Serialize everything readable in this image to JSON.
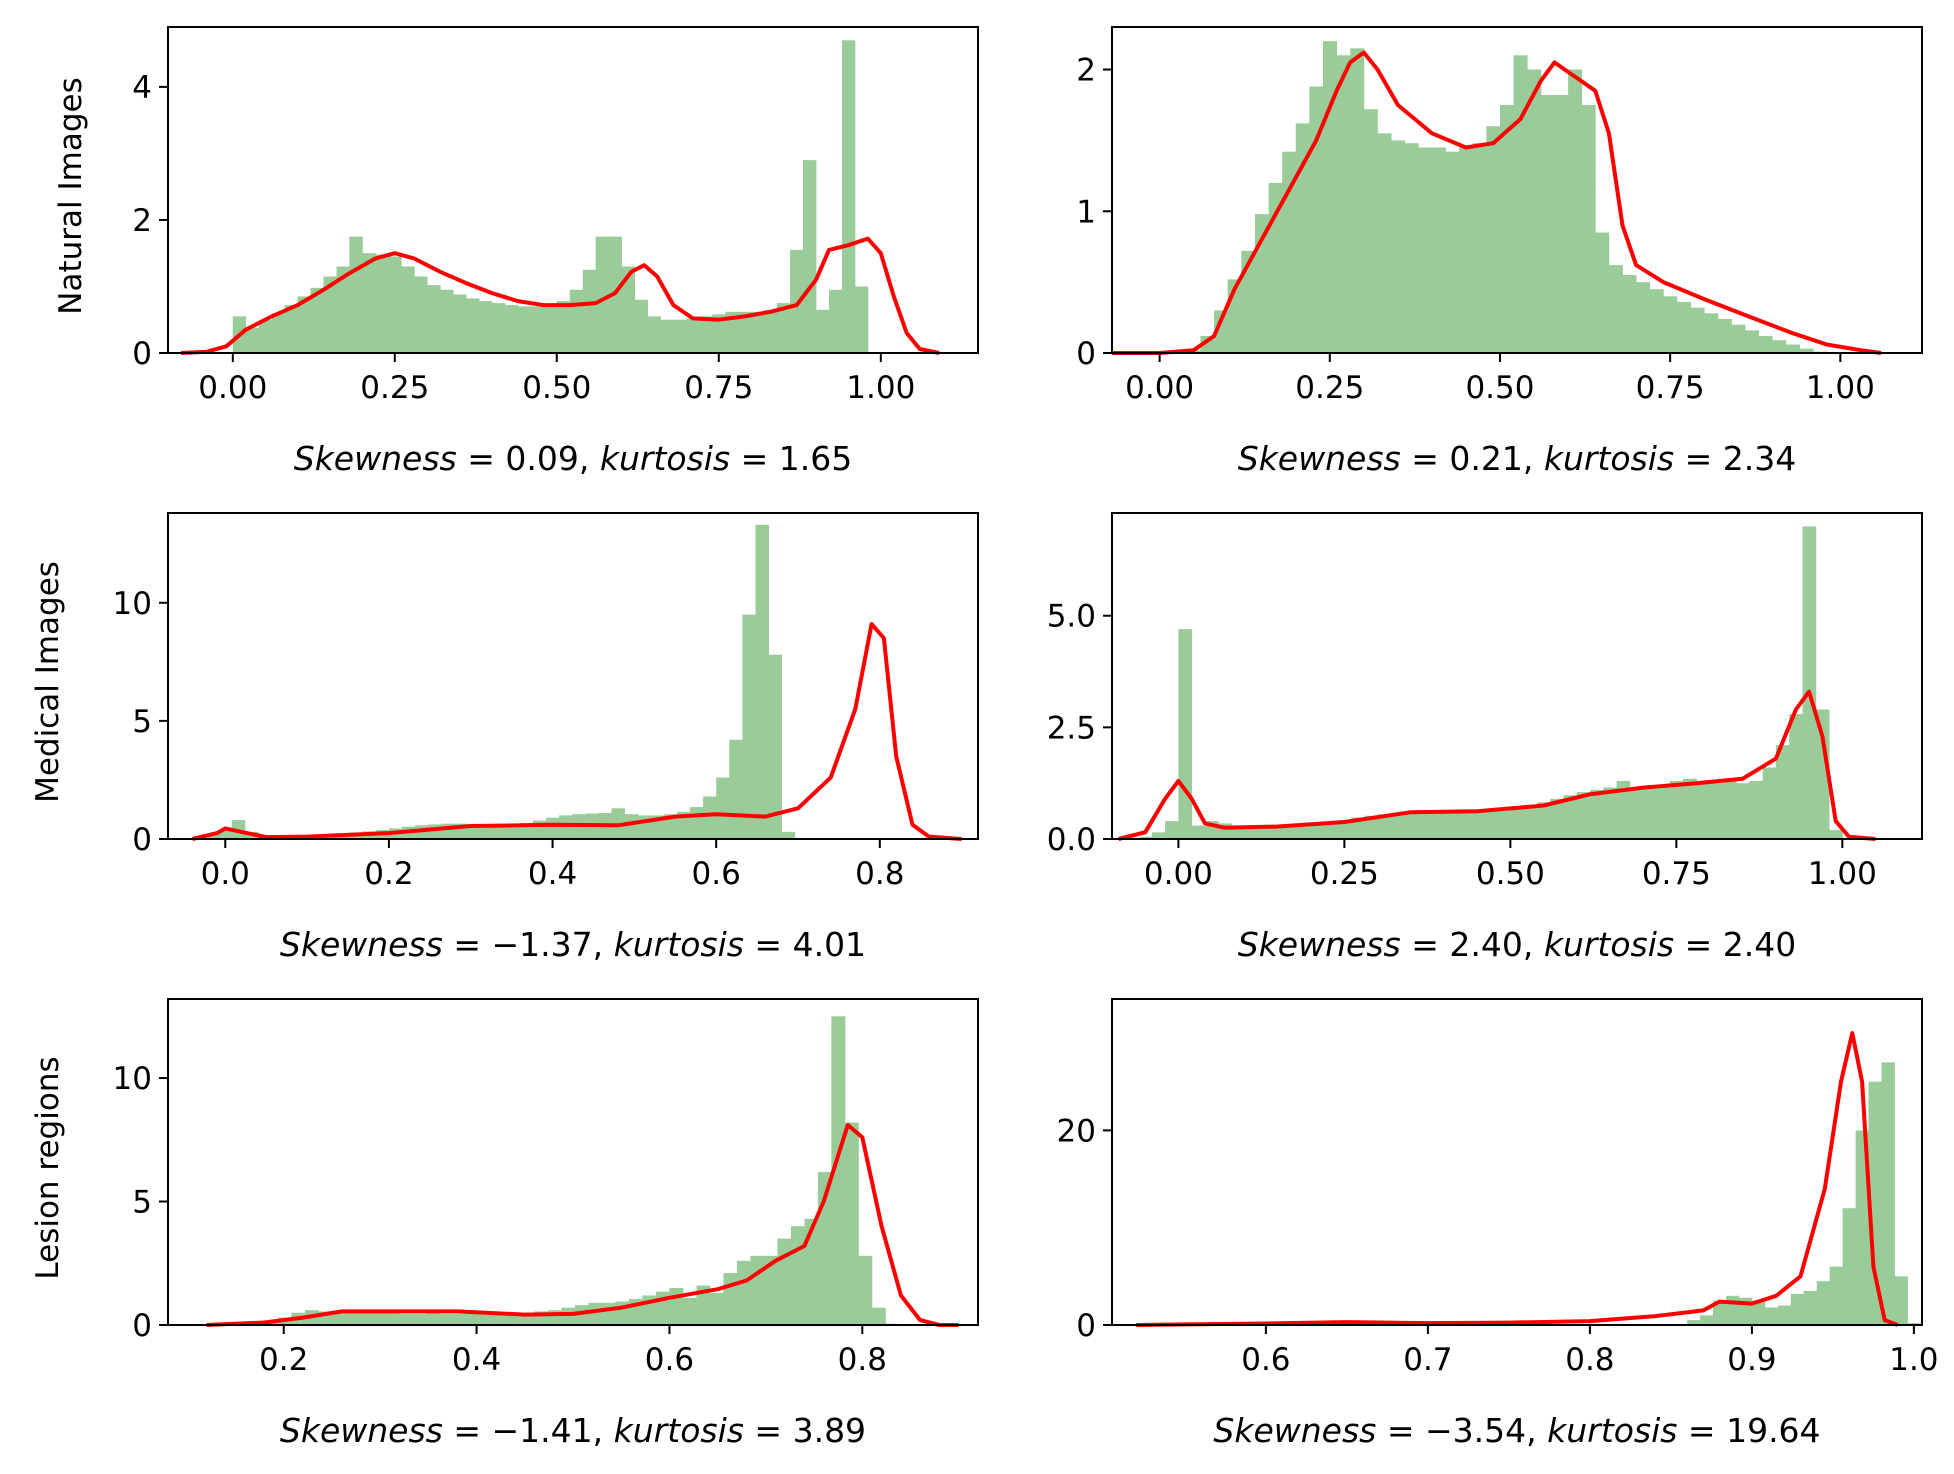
{
  "figure": {
    "colors": {
      "histogram": "#99cc99",
      "kde": "#ff0000",
      "axes": "#000000"
    },
    "row_labels": [
      "Natural Images",
      "Medical Images",
      "Lesion regions"
    ]
  },
  "chart_data": [
    {
      "type": "histogram",
      "row_label": "Natural Images",
      "caption": {
        "skew_label": "Skewness",
        "skew_value": "0.09",
        "kurt_label": "kurtosis",
        "kurt_value": "1.65"
      },
      "xlim": [
        -0.1,
        1.15
      ],
      "ylim": [
        0,
        4.9
      ],
      "xticks": [
        0.0,
        0.25,
        0.5,
        0.75,
        1.0
      ],
      "xtick_labels": [
        "0.00",
        "0.25",
        "0.50",
        "0.75",
        "1.00"
      ],
      "yticks": [
        0,
        2,
        4
      ],
      "ytick_labels": [
        "0",
        "2",
        "4"
      ],
      "bar_start": 0.0,
      "bar_width": 0.02,
      "bars": [
        0.55,
        0.38,
        0.5,
        0.6,
        0.72,
        0.85,
        0.98,
        1.15,
        1.3,
        1.75,
        1.5,
        1.48,
        1.45,
        1.3,
        1.15,
        1.02,
        0.95,
        0.88,
        0.82,
        0.78,
        0.75,
        0.72,
        0.7,
        0.7,
        0.72,
        0.78,
        0.95,
        1.25,
        1.75,
        1.75,
        1.3,
        0.8,
        0.55,
        0.5,
        0.5,
        0.52,
        0.55,
        0.58,
        0.62,
        0.62,
        0.62,
        0.65,
        0.75,
        1.55,
        2.9,
        0.65,
        0.95,
        4.7,
        1.0,
        0.0
      ],
      "kde": [
        [
          -0.08,
          0.0
        ],
        [
          -0.04,
          0.02
        ],
        [
          -0.01,
          0.1
        ],
        [
          0.02,
          0.35
        ],
        [
          0.06,
          0.55
        ],
        [
          0.1,
          0.72
        ],
        [
          0.14,
          0.95
        ],
        [
          0.18,
          1.2
        ],
        [
          0.22,
          1.42
        ],
        [
          0.25,
          1.5
        ],
        [
          0.28,
          1.42
        ],
        [
          0.32,
          1.22
        ],
        [
          0.36,
          1.05
        ],
        [
          0.4,
          0.9
        ],
        [
          0.44,
          0.78
        ],
        [
          0.48,
          0.72
        ],
        [
          0.52,
          0.72
        ],
        [
          0.56,
          0.75
        ],
        [
          0.59,
          0.9
        ],
        [
          0.615,
          1.22
        ],
        [
          0.635,
          1.32
        ],
        [
          0.655,
          1.15
        ],
        [
          0.68,
          0.72
        ],
        [
          0.71,
          0.52
        ],
        [
          0.75,
          0.5
        ],
        [
          0.79,
          0.55
        ],
        [
          0.83,
          0.62
        ],
        [
          0.87,
          0.72
        ],
        [
          0.9,
          1.1
        ],
        [
          0.92,
          1.55
        ],
        [
          0.95,
          1.62
        ],
        [
          0.98,
          1.72
        ],
        [
          1.0,
          1.5
        ],
        [
          1.02,
          0.85
        ],
        [
          1.04,
          0.3
        ],
        [
          1.06,
          0.06
        ],
        [
          1.09,
          0.0
        ]
      ]
    },
    {
      "type": "histogram",
      "row_label": "",
      "caption": {
        "skew_label": "Skewness",
        "skew_value": "0.21",
        "kurt_label": "kurtosis",
        "kurt_value": "2.34"
      },
      "xlim": [
        -0.07,
        1.12
      ],
      "ylim": [
        0,
        2.3
      ],
      "xticks": [
        0.0,
        0.25,
        0.5,
        0.75,
        1.0
      ],
      "xtick_labels": [
        "0.00",
        "0.25",
        "0.50",
        "0.75",
        "1.00"
      ],
      "yticks": [
        0,
        1,
        2
      ],
      "ytick_labels": [
        "0",
        "1",
        "2"
      ],
      "bar_start": 0.0,
      "bar_width": 0.02,
      "bars": [
        0.0,
        0.0,
        0.02,
        0.12,
        0.3,
        0.52,
        0.72,
        0.98,
        1.2,
        1.42,
        1.62,
        1.88,
        2.2,
        2.1,
        2.15,
        1.72,
        1.55,
        1.5,
        1.48,
        1.45,
        1.45,
        1.42,
        1.45,
        1.48,
        1.6,
        1.75,
        2.1,
        2.0,
        1.82,
        1.82,
        2.0,
        1.75,
        0.85,
        0.62,
        0.55,
        0.5,
        0.45,
        0.4,
        0.36,
        0.32,
        0.28,
        0.24,
        0.2,
        0.16,
        0.12,
        0.09,
        0.06,
        0.03,
        0.01,
        0.0
      ],
      "kde": [
        [
          -0.07,
          0.0
        ],
        [
          0.0,
          0.0
        ],
        [
          0.05,
          0.02
        ],
        [
          0.08,
          0.12
        ],
        [
          0.11,
          0.45
        ],
        [
          0.15,
          0.8
        ],
        [
          0.19,
          1.15
        ],
        [
          0.23,
          1.5
        ],
        [
          0.26,
          1.85
        ],
        [
          0.28,
          2.05
        ],
        [
          0.3,
          2.12
        ],
        [
          0.32,
          2.0
        ],
        [
          0.35,
          1.75
        ],
        [
          0.4,
          1.55
        ],
        [
          0.45,
          1.45
        ],
        [
          0.49,
          1.48
        ],
        [
          0.53,
          1.65
        ],
        [
          0.56,
          1.92
        ],
        [
          0.58,
          2.05
        ],
        [
          0.61,
          1.95
        ],
        [
          0.64,
          1.85
        ],
        [
          0.66,
          1.55
        ],
        [
          0.68,
          0.9
        ],
        [
          0.7,
          0.62
        ],
        [
          0.74,
          0.5
        ],
        [
          0.8,
          0.38
        ],
        [
          0.87,
          0.25
        ],
        [
          0.93,
          0.14
        ],
        [
          0.98,
          0.06
        ],
        [
          1.03,
          0.02
        ],
        [
          1.06,
          0.0
        ]
      ]
    },
    {
      "type": "histogram",
      "row_label": "Medical Images",
      "caption": {
        "skew_label": "Skewness",
        "skew_value": "−1.37",
        "kurt_label": "kurtosis",
        "kurt_value": "4.01"
      },
      "xlim": [
        -0.07,
        0.92
      ],
      "ylim": [
        0,
        13.8
      ],
      "xticks": [
        0.0,
        0.2,
        0.4,
        0.6,
        0.8
      ],
      "xtick_labels": [
        "0.0",
        "0.2",
        "0.4",
        "0.6",
        "0.8"
      ],
      "yticks": [
        0,
        5,
        10
      ],
      "ytick_labels": [
        "0",
        "5",
        "10"
      ],
      "bar_start": -0.04,
      "bar_width": 0.016,
      "bars": [
        0.1,
        0.2,
        0.35,
        0.8,
        0.3,
        0.1,
        0.1,
        0.12,
        0.15,
        0.18,
        0.2,
        0.25,
        0.28,
        0.32,
        0.38,
        0.45,
        0.52,
        0.58,
        0.62,
        0.65,
        0.65,
        0.62,
        0.6,
        0.6,
        0.62,
        0.68,
        0.78,
        0.9,
        1.0,
        1.05,
        1.08,
        1.1,
        1.3,
        1.05,
        1.0,
        1.0,
        1.05,
        1.15,
        1.35,
        1.8,
        2.6,
        4.2,
        9.5,
        13.3,
        7.8,
        0.3,
        0.0
      ],
      "kde": [
        [
          -0.04,
          0.0
        ],
        [
          -0.01,
          0.25
        ],
        [
          0.0,
          0.45
        ],
        [
          0.02,
          0.3
        ],
        [
          0.05,
          0.08
        ],
        [
          0.1,
          0.1
        ],
        [
          0.2,
          0.25
        ],
        [
          0.3,
          0.55
        ],
        [
          0.4,
          0.6
        ],
        [
          0.48,
          0.58
        ],
        [
          0.55,
          0.95
        ],
        [
          0.6,
          1.05
        ],
        [
          0.66,
          0.95
        ],
        [
          0.7,
          1.3
        ],
        [
          0.74,
          2.6
        ],
        [
          0.77,
          5.5
        ],
        [
          0.79,
          9.1
        ],
        [
          0.805,
          8.5
        ],
        [
          0.82,
          3.5
        ],
        [
          0.84,
          0.6
        ],
        [
          0.86,
          0.1
        ],
        [
          0.9,
          0.0
        ]
      ]
    },
    {
      "type": "histogram",
      "row_label": "",
      "caption": {
        "skew_label": "Skewness",
        "skew_value": "2.40",
        "kurt_label": "kurtosis",
        "kurt_value": "2.40"
      },
      "xlim": [
        -0.1,
        1.12
      ],
      "ylim": [
        0,
        7.3
      ],
      "xticks": [
        0.0,
        0.25,
        0.5,
        0.75,
        1.0
      ],
      "xtick_labels": [
        "0.00",
        "0.25",
        "0.50",
        "0.75",
        "1.00"
      ],
      "yticks": [
        0.0,
        2.5,
        5.0
      ],
      "ytick_labels": [
        "0.0",
        "2.5",
        "5.0"
      ],
      "bar_start": -0.08,
      "bar_width": 0.02,
      "bars": [
        0.0,
        0.05,
        0.15,
        0.4,
        4.7,
        0.3,
        0.4,
        0.35,
        0.3,
        0.28,
        0.28,
        0.28,
        0.28,
        0.3,
        0.33,
        0.38,
        0.42,
        0.48,
        0.52,
        0.55,
        0.58,
        0.6,
        0.62,
        0.62,
        0.65,
        0.65,
        0.65,
        0.65,
        0.65,
        0.7,
        0.75,
        0.82,
        0.9,
        0.98,
        1.05,
        1.1,
        1.15,
        1.3,
        1.1,
        1.15,
        1.2,
        1.3,
        1.35,
        1.3,
        1.25,
        1.3,
        1.25,
        1.3,
        1.6,
        2.1,
        2.8,
        7.0,
        2.9,
        0.2,
        0.0
      ],
      "kde": [
        [
          -0.09,
          0.0
        ],
        [
          -0.05,
          0.15
        ],
        [
          -0.02,
          0.9
        ],
        [
          0.0,
          1.3
        ],
        [
          0.02,
          0.9
        ],
        [
          0.04,
          0.35
        ],
        [
          0.07,
          0.25
        ],
        [
          0.15,
          0.28
        ],
        [
          0.25,
          0.38
        ],
        [
          0.35,
          0.6
        ],
        [
          0.45,
          0.62
        ],
        [
          0.55,
          0.75
        ],
        [
          0.62,
          1.0
        ],
        [
          0.7,
          1.15
        ],
        [
          0.78,
          1.25
        ],
        [
          0.85,
          1.35
        ],
        [
          0.9,
          1.8
        ],
        [
          0.93,
          2.9
        ],
        [
          0.95,
          3.3
        ],
        [
          0.97,
          2.3
        ],
        [
          0.99,
          0.4
        ],
        [
          1.01,
          0.05
        ],
        [
          1.05,
          0.0
        ]
      ]
    },
    {
      "type": "histogram",
      "row_label": "Lesion regions",
      "caption": {
        "skew_label": "Skewness",
        "skew_value": "−1.41",
        "kurt_label": "kurtosis",
        "kurt_value": "3.89"
      },
      "xlim": [
        0.08,
        0.92
      ],
      "ylim": [
        0,
        13.2
      ],
      "xticks": [
        0.2,
        0.4,
        0.6,
        0.8
      ],
      "xtick_labels": [
        "0.2",
        "0.4",
        "0.6",
        "0.8"
      ],
      "yticks": [
        0,
        5,
        10
      ],
      "ytick_labels": [
        "0",
        "5",
        "10"
      ],
      "bar_start": 0.18,
      "bar_width": 0.014,
      "bars": [
        0.1,
        0.3,
        0.5,
        0.6,
        0.55,
        0.55,
        0.55,
        0.55,
        0.5,
        0.5,
        0.45,
        0.45,
        0.48,
        0.45,
        0.45,
        0.45,
        0.42,
        0.42,
        0.45,
        0.5,
        0.55,
        0.6,
        0.7,
        0.8,
        0.9,
        0.9,
        0.95,
        1.05,
        1.2,
        1.35,
        1.5,
        1.1,
        1.6,
        1.3,
        2.1,
        2.6,
        2.8,
        2.8,
        3.5,
        4.0,
        4.3,
        6.2,
        12.5,
        8.2,
        2.8,
        0.7,
        0.05
      ],
      "kde": [
        [
          0.12,
          0.0
        ],
        [
          0.18,
          0.1
        ],
        [
          0.22,
          0.3
        ],
        [
          0.26,
          0.55
        ],
        [
          0.3,
          0.55
        ],
        [
          0.38,
          0.55
        ],
        [
          0.45,
          0.42
        ],
        [
          0.5,
          0.45
        ],
        [
          0.55,
          0.7
        ],
        [
          0.6,
          1.1
        ],
        [
          0.65,
          1.45
        ],
        [
          0.68,
          1.8
        ],
        [
          0.71,
          2.6
        ],
        [
          0.74,
          3.2
        ],
        [
          0.76,
          5.0
        ],
        [
          0.785,
          8.1
        ],
        [
          0.8,
          7.6
        ],
        [
          0.82,
          4.0
        ],
        [
          0.84,
          1.2
        ],
        [
          0.86,
          0.2
        ],
        [
          0.88,
          0.0
        ],
        [
          0.9,
          0.0
        ]
      ]
    },
    {
      "type": "histogram",
      "row_label": "",
      "caption": {
        "skew_label": "Skewness",
        "skew_value": "−3.54",
        "kurt_label": "kurtosis",
        "kurt_value": "19.64"
      },
      "xlim": [
        0.505,
        1.005
      ],
      "ylim": [
        0,
        33.5
      ],
      "xticks": [
        0.6,
        0.7,
        0.8,
        0.9,
        1.0
      ],
      "xtick_labels": [
        "0.6",
        "0.7",
        "0.8",
        "0.9",
        "1.0"
      ],
      "yticks": [
        0,
        20
      ],
      "ytick_labels": [
        "0",
        "20"
      ],
      "bar_start": 0.86,
      "bar_width": 0.008,
      "bars": [
        0.5,
        1.0,
        2.5,
        3.0,
        2.8,
        2.5,
        1.8,
        2.0,
        3.2,
        3.5,
        4.5,
        6.0,
        12.0,
        20.0,
        25.0,
        27.0,
        5.0,
        0.2
      ],
      "kde": [
        [
          0.52,
          0.0
        ],
        [
          0.6,
          0.15
        ],
        [
          0.65,
          0.3
        ],
        [
          0.7,
          0.2
        ],
        [
          0.75,
          0.25
        ],
        [
          0.8,
          0.4
        ],
        [
          0.84,
          0.9
        ],
        [
          0.87,
          1.5
        ],
        [
          0.88,
          2.4
        ],
        [
          0.9,
          2.2
        ],
        [
          0.915,
          3.0
        ],
        [
          0.93,
          5.0
        ],
        [
          0.945,
          14.0
        ],
        [
          0.955,
          25.0
        ],
        [
          0.962,
          30.0
        ],
        [
          0.968,
          25.0
        ],
        [
          0.975,
          6.0
        ],
        [
          0.982,
          0.5
        ],
        [
          0.99,
          0.0
        ]
      ]
    }
  ]
}
